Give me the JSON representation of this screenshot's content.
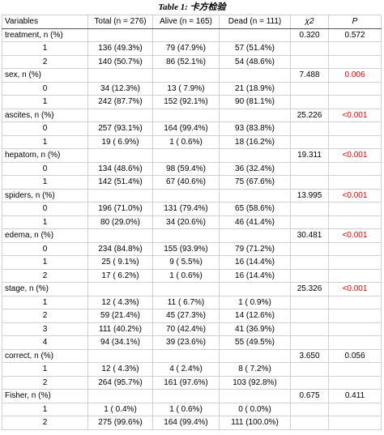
{
  "table": {
    "title": "Table 1: 卡方检验",
    "columns": [
      "Variables",
      "Total (n = 276)",
      "Alive (n = 165)",
      "Dead (n = 111)",
      "χ2",
      "P"
    ],
    "groups": [
      {
        "label": "treatment, n (%)",
        "chi2": "0.320",
        "p": "0.572",
        "p_color": "#000000",
        "rows": [
          {
            "level": "1",
            "cells": [
              "136 (49.3%)",
              "79 (47.9%)",
              "57 (51.4%)"
            ]
          },
          {
            "level": "2",
            "cells": [
              "140 (50.7%)",
              "86 (52.1%)",
              "54 (48.6%)"
            ]
          }
        ]
      },
      {
        "label": "sex, n (%)",
        "chi2": "7.488",
        "p": "0.006",
        "p_color": "#e00000",
        "rows": [
          {
            "level": "0",
            "cells": [
              "34 (12.3%)",
              "13 ( 7.9%)",
              "21 (18.9%)"
            ]
          },
          {
            "level": "1",
            "cells": [
              "242 (87.7%)",
              "152 (92.1%)",
              "90 (81.1%)"
            ]
          }
        ]
      },
      {
        "label": "ascites, n (%)",
        "chi2": "25.226",
        "p": "<0.001",
        "p_color": "#e00000",
        "rows": [
          {
            "level": "0",
            "cells": [
              "257 (93.1%)",
              "164 (99.4%)",
              "93 (83.8%)"
            ]
          },
          {
            "level": "1",
            "cells": [
              "19 ( 6.9%)",
              "1 ( 0.6%)",
              "18 (16.2%)"
            ]
          }
        ]
      },
      {
        "label": "hepatom, n (%)",
        "chi2": "19.311",
        "p": "<0.001",
        "p_color": "#e00000",
        "rows": [
          {
            "level": "0",
            "cells": [
              "134 (48.6%)",
              "98 (59.4%)",
              "36 (32.4%)"
            ]
          },
          {
            "level": "1",
            "cells": [
              "142 (51.4%)",
              "67 (40.6%)",
              "75 (67.6%)"
            ]
          }
        ]
      },
      {
        "label": "spiders, n (%)",
        "chi2": "13.995",
        "p": "<0.001",
        "p_color": "#e00000",
        "rows": [
          {
            "level": "0",
            "cells": [
              "196 (71.0%)",
              "131 (79.4%)",
              "65 (58.6%)"
            ]
          },
          {
            "level": "1",
            "cells": [
              "80 (29.0%)",
              "34 (20.6%)",
              "46 (41.4%)"
            ]
          }
        ]
      },
      {
        "label": "edema, n (%)",
        "chi2": "30.481",
        "p": "<0.001",
        "p_color": "#e00000",
        "rows": [
          {
            "level": "0",
            "cells": [
              "234 (84.8%)",
              "155 (93.9%)",
              "79 (71.2%)"
            ]
          },
          {
            "level": "1",
            "cells": [
              "25 ( 9.1%)",
              "9 ( 5.5%)",
              "16 (14.4%)"
            ]
          },
          {
            "level": "2",
            "cells": [
              "17 ( 6.2%)",
              "1 ( 0.6%)",
              "16 (14.4%)"
            ]
          }
        ]
      },
      {
        "label": "stage, n (%)",
        "chi2": "25.326",
        "p": "<0.001",
        "p_color": "#e00000",
        "rows": [
          {
            "level": "1",
            "cells": [
              "12 ( 4.3%)",
              "11 ( 6.7%)",
              "1 ( 0.9%)"
            ]
          },
          {
            "level": "2",
            "cells": [
              "59 (21.4%)",
              "45 (27.3%)",
              "14 (12.6%)"
            ]
          },
          {
            "level": "3",
            "cells": [
              "111 (40.2%)",
              "70 (42.4%)",
              "41 (36.9%)"
            ]
          },
          {
            "level": "4",
            "cells": [
              "94 (34.1%)",
              "39 (23.6%)",
              "55 (49.5%)"
            ]
          }
        ]
      },
      {
        "label": "correct, n (%)",
        "chi2": "3.650",
        "p": "0.056",
        "p_color": "#000000",
        "rows": [
          {
            "level": "1",
            "cells": [
              "12 ( 4.3%)",
              "4 ( 2.4%)",
              "8 ( 7.2%)"
            ]
          },
          {
            "level": "2",
            "cells": [
              "264 (95.7%)",
              "161 (97.6%)",
              "103 (92.8%)"
            ]
          }
        ]
      },
      {
        "label": "Fisher, n (%)",
        "chi2": "0.675",
        "p": "0.411",
        "p_color": "#000000",
        "rows": [
          {
            "level": "1",
            "cells": [
              "1 ( 0.4%)",
              "1 ( 0.6%)",
              "0 ( 0.0%)"
            ]
          },
          {
            "level": "2",
            "cells": [
              "275 (99.6%)",
              "164 (99.4%)",
              "111 (100.0%)"
            ]
          }
        ]
      }
    ]
  }
}
